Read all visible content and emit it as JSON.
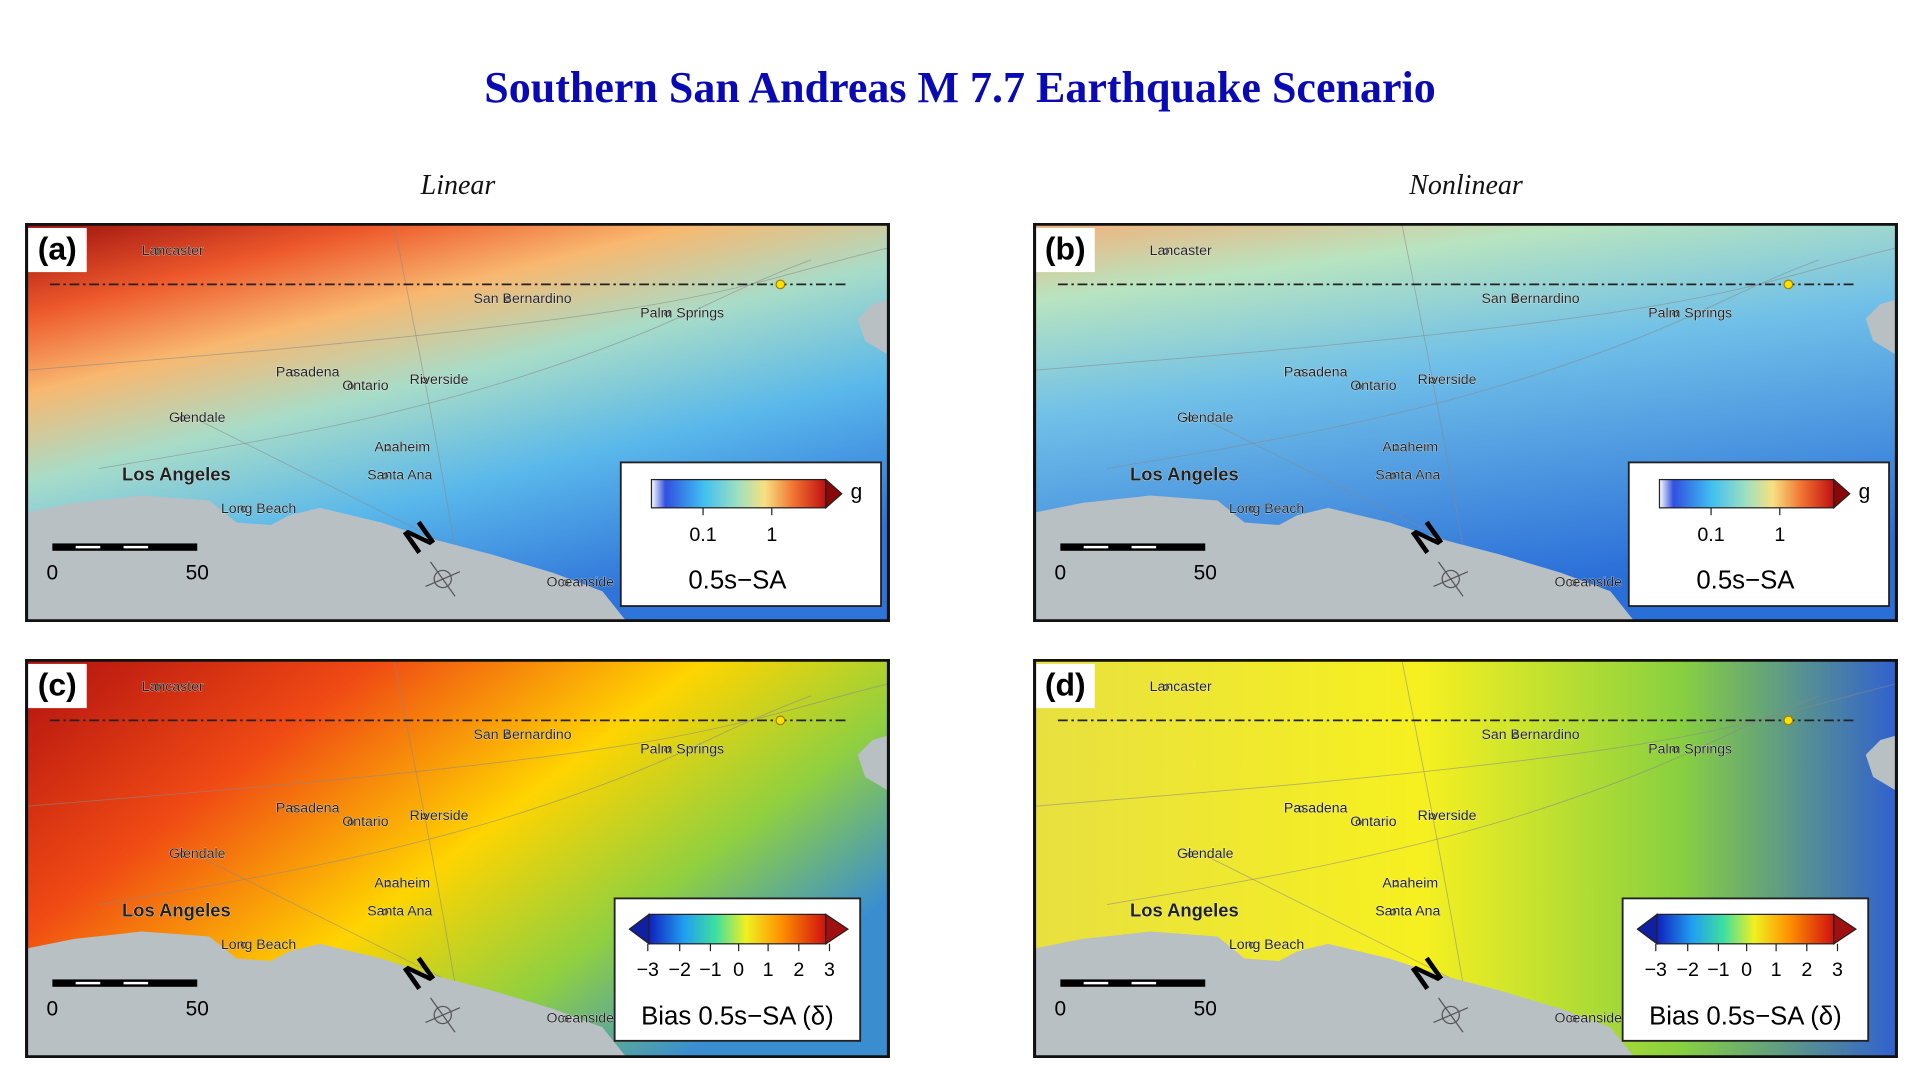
{
  "title": "Southern San Andreas M 7.7 Earthquake Scenario",
  "columns": [
    "Linear",
    "Nonlinear"
  ],
  "map_labels": [
    "Lancaster",
    "San Bernardino",
    "Palm Springs",
    "Pasadena",
    "Ontario",
    "Riverside",
    "Glendale",
    "Anaheim",
    "Los Angeles",
    "Santa Ana",
    "Long Beach",
    "Oceanside"
  ],
  "scale_bar": [
    "0",
    "50"
  ],
  "panels": [
    {
      "label": "(a)",
      "legend": {
        "ticks": [
          "0.1",
          "1"
        ],
        "unit": "g",
        "title": "0.5s−SA"
      }
    },
    {
      "label": "(b)",
      "legend": {
        "ticks": [
          "0.1",
          "1"
        ],
        "unit": "g",
        "title": "0.5s−SA"
      }
    },
    {
      "label": "(c)",
      "legend": {
        "ticks": [
          "−3",
          "−2",
          "−1",
          "0",
          "1",
          "2",
          "3"
        ],
        "title": "Bias 0.5s−SA (δ)"
      }
    },
    {
      "label": "(d)",
      "legend": {
        "ticks": [
          "−3",
          "−2",
          "−1",
          "0",
          "1",
          "2",
          "3"
        ],
        "title": "Bias 0.5s−SA (δ)"
      }
    }
  ]
}
